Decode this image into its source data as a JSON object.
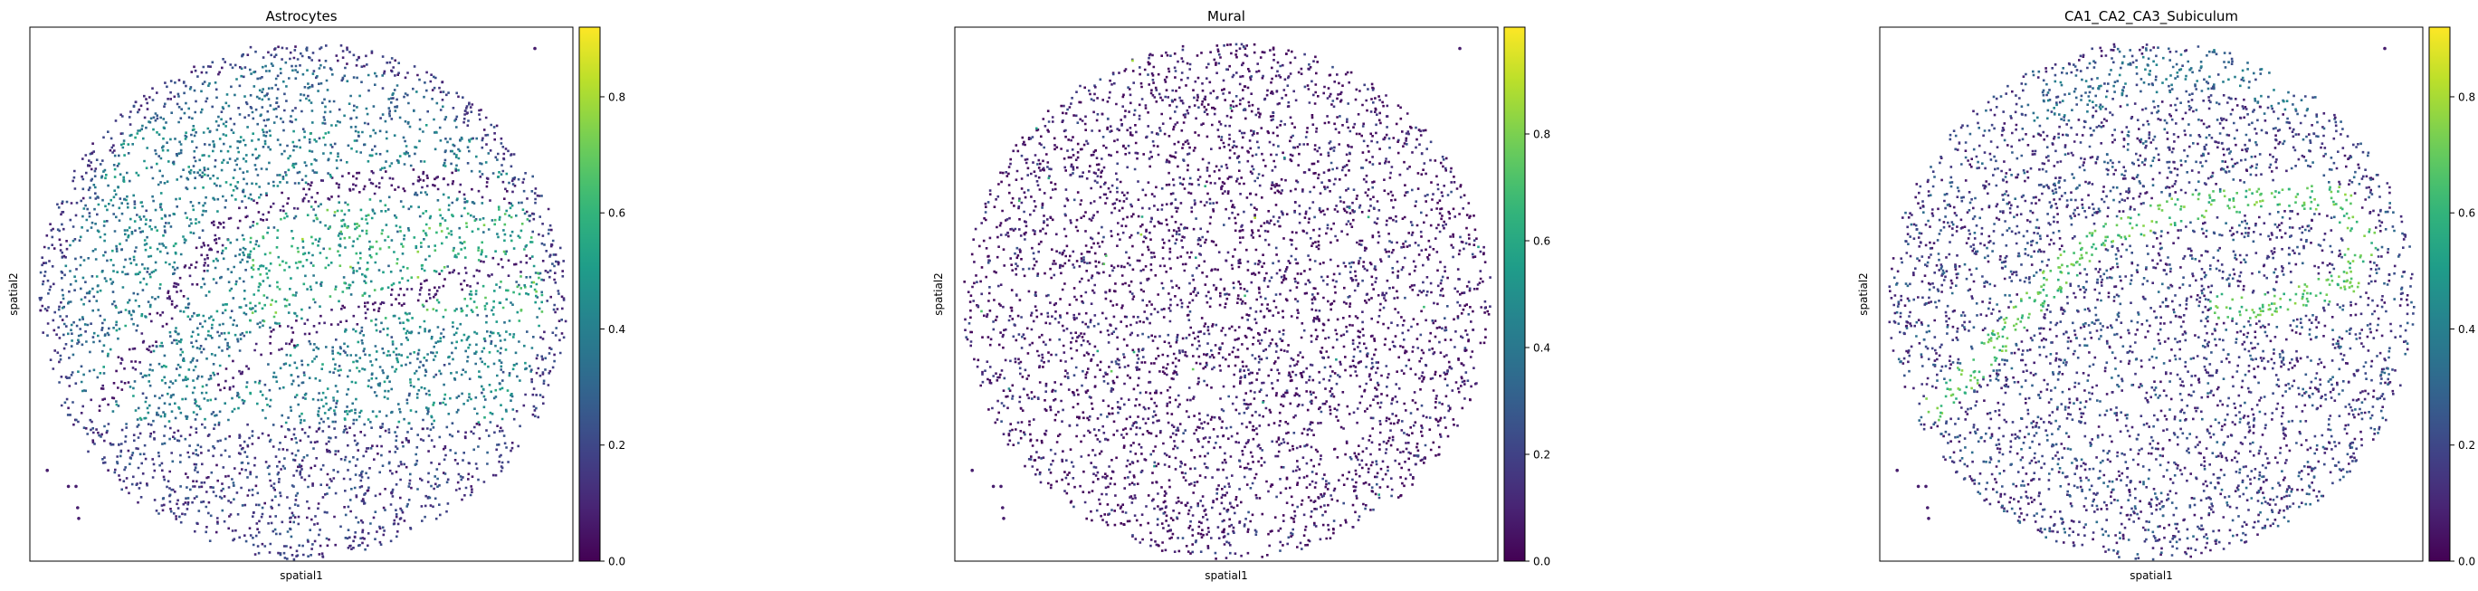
{
  "chart_data": [
    {
      "type": "scatter",
      "title": "Astrocytes",
      "xlabel": "spatial1",
      "ylabel": "spatial2",
      "colorbar": {
        "colormap": "viridis",
        "range": [
          0,
          0.92
        ],
        "ticks": [
          0.0,
          0.2,
          0.4,
          0.6,
          0.8
        ],
        "tick_labels": [
          "0.0",
          "0.2",
          "0.4",
          "0.6",
          "0.8"
        ]
      },
      "pattern": "astrocytes",
      "grid": false,
      "axis_ticks": false
    },
    {
      "type": "scatter",
      "title": "Mural",
      "xlabel": "spatial1",
      "ylabel": "spatial2",
      "colorbar": {
        "colormap": "viridis",
        "range": [
          0,
          1.0
        ],
        "ticks": [
          0.0,
          0.2,
          0.4,
          0.6,
          0.8
        ],
        "tick_labels": [
          "0.0",
          "0.2",
          "0.4",
          "0.6",
          "0.8"
        ]
      },
      "pattern": "mural",
      "grid": false,
      "axis_ticks": false
    },
    {
      "type": "scatter",
      "title": "CA1_CA2_CA3_Subiculum",
      "xlabel": "spatial1",
      "ylabel": "spatial2",
      "colorbar": {
        "colormap": "viridis",
        "range": [
          0,
          0.92
        ],
        "ticks": [
          0.0,
          0.2,
          0.4,
          0.6,
          0.8
        ],
        "tick_labels": [
          "0.0",
          "0.2",
          "0.4",
          "0.6",
          "0.8"
        ]
      },
      "pattern": "ca",
      "grid": false,
      "axis_ticks": false
    }
  ]
}
